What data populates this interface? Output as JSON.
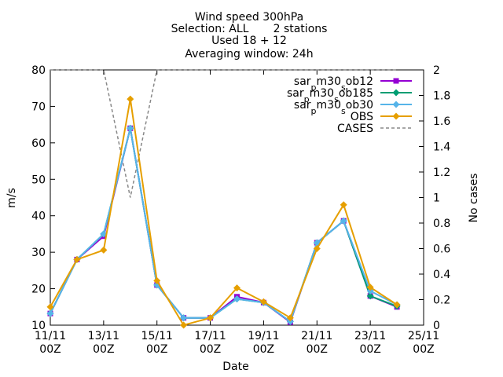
{
  "chart_data": {
    "type": "line",
    "title_lines": [
      "Wind speed 300hPa",
      "Selection: ALL       2 stations",
      "Used 18 + 12",
      "Averaging window: 24h"
    ],
    "xlabel": "Date",
    "ylabel": "m/s",
    "y2label": "No cases",
    "x_ticks": [
      {
        "line1": "11/11",
        "line2": "00Z"
      },
      {
        "line1": "13/11",
        "line2": "00Z"
      },
      {
        "line1": "15/11",
        "line2": "00Z"
      },
      {
        "line1": "17/11",
        "line2": "00Z"
      },
      {
        "line1": "19/11",
        "line2": "00Z"
      },
      {
        "line1": "21/11",
        "line2": "00Z"
      },
      {
        "line1": "23/11",
        "line2": "00Z"
      },
      {
        "line1": "25/11",
        "line2": "00Z"
      }
    ],
    "xlim": [
      0,
      14
    ],
    "ylim": [
      10,
      80
    ],
    "y_ticks": [
      10,
      20,
      30,
      40,
      50,
      60,
      70,
      80
    ],
    "y2lim": [
      0,
      2
    ],
    "y2_ticks": [
      "0",
      "0.2",
      "0.4",
      "0.6",
      "0.8",
      "1",
      "1.2",
      "1.4",
      "1.6",
      "1.8",
      "2"
    ],
    "x_days": [
      0,
      1,
      2,
      3,
      4,
      5,
      6,
      7,
      8,
      9,
      10,
      11,
      12,
      13
    ],
    "legend_position": "top-right",
    "series": [
      {
        "name": "sar_p m30_s ob12",
        "color": "#9400d3",
        "marker": "square",
        "values": [
          13.2,
          28.0,
          34.4,
          64.0,
          21.0,
          12.0,
          12.0,
          17.8,
          16.2,
          10.8,
          32.6,
          38.6,
          18.0,
          15.0
        ]
      },
      {
        "name": "sar_p m30_s ob185",
        "color": "#009e73",
        "marker": "diamond",
        "values": [
          13.2,
          28.0,
          35.0,
          64.0,
          21.0,
          12.0,
          12.0,
          17.2,
          16.2,
          11.0,
          32.6,
          38.6,
          18.0,
          15.2
        ]
      },
      {
        "name": "sar_p m30_s ob30",
        "color": "#56b4e9",
        "marker": "diamond",
        "values": [
          13.2,
          28.0,
          35.0,
          64.0,
          21.0,
          12.0,
          12.0,
          17.2,
          16.2,
          11.0,
          32.6,
          38.6,
          19.4,
          15.6
        ]
      },
      {
        "name": "OBS",
        "color": "#e69f00",
        "marker": "diamond",
        "values": [
          15.0,
          28.0,
          30.6,
          72.0,
          22.2,
          10.0,
          12.0,
          20.2,
          16.4,
          12.0,
          31.0,
          43.0,
          20.4,
          15.6
        ]
      },
      {
        "name": "CASES",
        "color": "#888888",
        "marker": "none",
        "axis": "y2",
        "values": [
          2,
          2,
          2,
          1,
          2,
          2,
          2,
          2,
          2,
          2,
          2,
          2,
          2,
          2
        ]
      }
    ]
  }
}
